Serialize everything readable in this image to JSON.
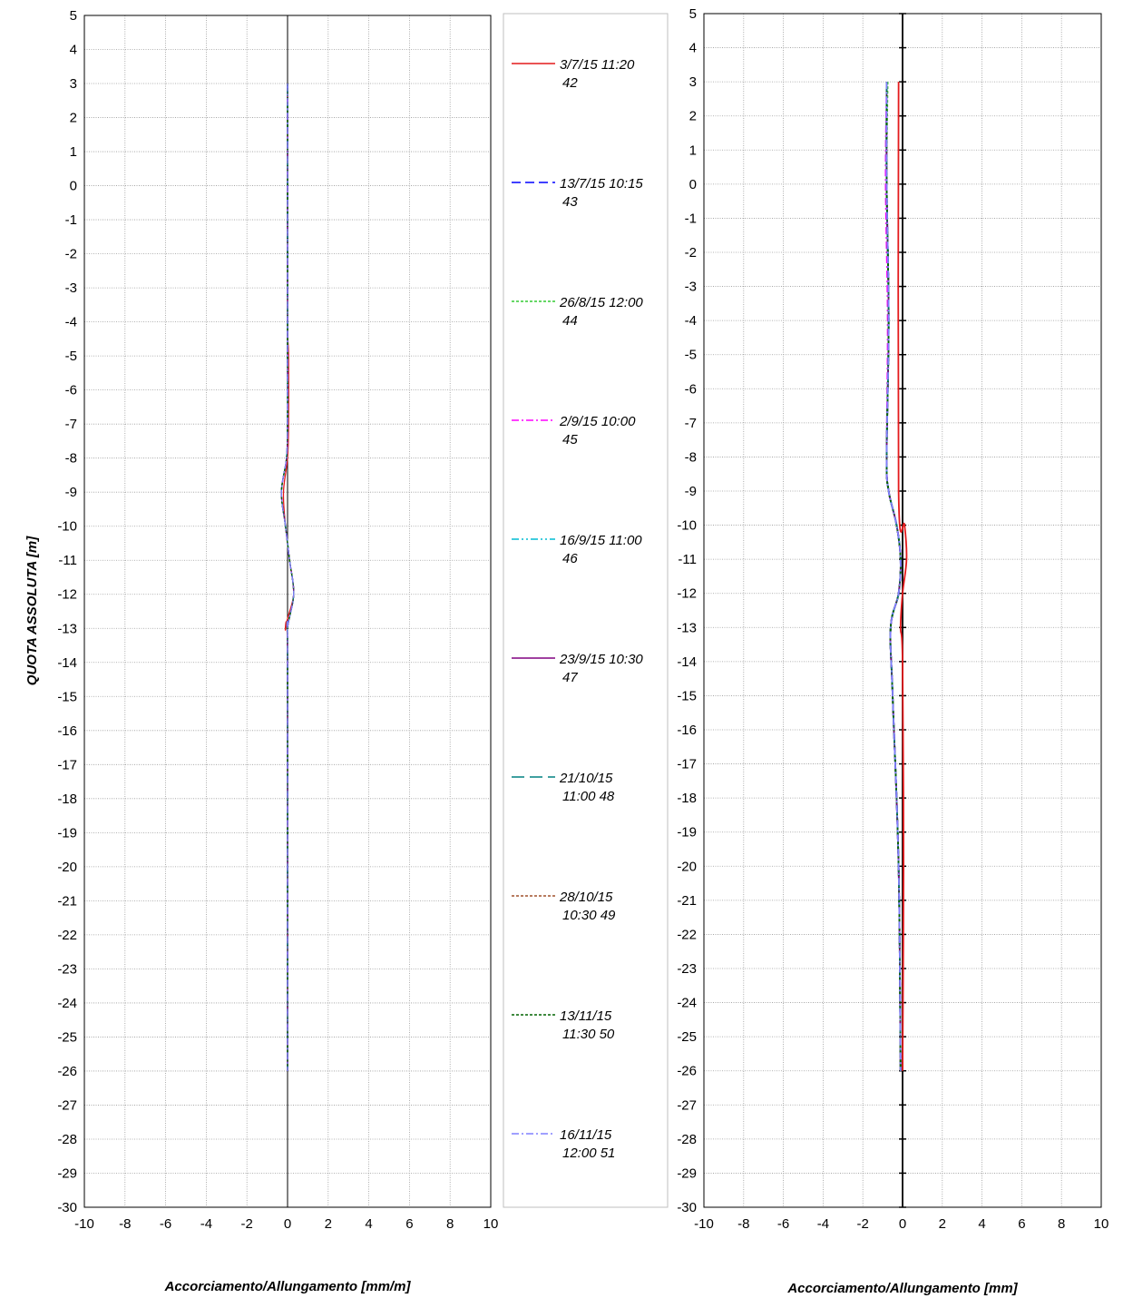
{
  "chart_data": [
    {
      "type": "line",
      "orientation": "vertical-profile",
      "xlabel": "Accorciamento/Allungamento [mm/m]",
      "ylabel": "QUOTA ASSOLUTA [m]",
      "xlim": [
        -10,
        10
      ],
      "ylim": [
        -30,
        5
      ],
      "x_ticks": [
        -10,
        -8,
        -6,
        -4,
        -2,
        0,
        2,
        4,
        6,
        8,
        10
      ],
      "y_ticks": [
        5,
        4,
        3,
        2,
        1,
        0,
        -1,
        -2,
        -3,
        -4,
        -5,
        -6,
        -7,
        -8,
        -9,
        -10,
        -11,
        -12,
        -13,
        -14,
        -15,
        -16,
        -17,
        -18,
        -19,
        -20,
        -21,
        -22,
        -23,
        -24,
        -25,
        -26,
        -27,
        -28,
        -29,
        -30
      ],
      "grid": true,
      "legend_position": "right",
      "series": [
        {
          "name": "3/7/15 11:20 42",
          "color": "#e41a1c",
          "dash": "solid",
          "depth": [
            3,
            0,
            -4,
            -5,
            -7,
            -8,
            -9,
            -10,
            -11,
            -12,
            -13,
            -14,
            -26
          ],
          "values": [
            0,
            0,
            0,
            0.05,
            0.05,
            0,
            -0.2,
            -0.1,
            0.1,
            0.3,
            -0.1,
            0,
            0
          ]
        },
        {
          "name": "13/7/15 10:15 43",
          "color": "#0000ff",
          "dash": "dashed",
          "depth": [
            3,
            0,
            -4,
            -5,
            -7,
            -8,
            -9,
            -10,
            -11,
            -12,
            -13,
            -14,
            -26
          ],
          "values": [
            0,
            0,
            0,
            0,
            0,
            -0.05,
            -0.3,
            -0.1,
            0.1,
            0.3,
            0,
            0,
            0
          ]
        },
        {
          "name": "26/8/15 12:00 44",
          "color": "#33cc33",
          "dash": "dotted",
          "depth": [
            3,
            0,
            -4,
            -5,
            -7,
            -8,
            -9,
            -10,
            -11,
            -12,
            -13,
            -14,
            -26
          ],
          "values": [
            0,
            0,
            0,
            0,
            0,
            -0.05,
            -0.3,
            -0.1,
            0.1,
            0.3,
            0,
            0,
            0
          ]
        },
        {
          "name": "2/9/15 10:00 45",
          "color": "#ff00ff",
          "dash": "dashdot",
          "depth": [
            3,
            0,
            -4,
            -5,
            -7,
            -8,
            -9,
            -10,
            -11,
            -12,
            -13,
            -14,
            -26
          ],
          "values": [
            0,
            0,
            0,
            0,
            0,
            -0.05,
            -0.3,
            -0.1,
            0.1,
            0.3,
            0,
            0,
            0
          ]
        },
        {
          "name": "16/9/15 11:00 46",
          "color": "#00bcd4",
          "dash": "dashdotdot",
          "depth": [
            3,
            0,
            -4,
            -5,
            -7,
            -8,
            -9,
            -10,
            -11,
            -12,
            -13,
            -14,
            -26
          ],
          "values": [
            0,
            0,
            0,
            0,
            0,
            -0.05,
            -0.3,
            -0.1,
            0.1,
            0.3,
            0,
            0,
            0
          ]
        },
        {
          "name": "23/9/15 10:30 47",
          "color": "#800080",
          "dash": "solid",
          "depth": [
            3,
            0,
            -4,
            -5,
            -7,
            -8,
            -9,
            -10,
            -11,
            -12,
            -13,
            -14,
            -26
          ],
          "values": [
            0,
            0,
            0,
            0,
            0,
            -0.05,
            -0.3,
            -0.1,
            0.1,
            0.3,
            0,
            0,
            0
          ]
        },
        {
          "name": "21/10/15 11:00 48",
          "color": "#008080",
          "dash": "longdash",
          "depth": [
            3,
            0,
            -4,
            -5,
            -7,
            -8,
            -9,
            -10,
            -11,
            -12,
            -13,
            -14,
            -26
          ],
          "values": [
            0,
            0,
            0,
            0,
            0,
            -0.05,
            -0.3,
            -0.1,
            0.1,
            0.3,
            0,
            0,
            0
          ]
        },
        {
          "name": "28/10/15 10:30 49",
          "color": "#a0522d",
          "dash": "dotted",
          "depth": [
            3,
            0,
            -4,
            -5,
            -7,
            -8,
            -9,
            -10,
            -11,
            -12,
            -13,
            -14,
            -26
          ],
          "values": [
            0,
            0,
            0,
            0,
            0,
            -0.05,
            -0.3,
            -0.1,
            0.1,
            0.3,
            0,
            0,
            0
          ]
        },
        {
          "name": "13/11/15 11:30 50",
          "color": "#006400",
          "dash": "dotted",
          "depth": [
            3,
            0,
            -4,
            -5,
            -7,
            -8,
            -9,
            -10,
            -11,
            -12,
            -13,
            -14,
            -26
          ],
          "values": [
            0,
            0,
            0,
            0,
            0,
            -0.05,
            -0.3,
            -0.1,
            0.1,
            0.3,
            0,
            0,
            0
          ]
        },
        {
          "name": "16/11/15 12:00 51",
          "color": "#8080ff",
          "dash": "dashdot",
          "depth": [
            3,
            0,
            -4,
            -5,
            -7,
            -8,
            -9,
            -10,
            -11,
            -12,
            -13,
            -14,
            -26
          ],
          "values": [
            0,
            0,
            0,
            0,
            0,
            -0.05,
            -0.3,
            -0.1,
            0.1,
            0.3,
            0,
            0,
            0
          ]
        }
      ]
    },
    {
      "type": "line",
      "orientation": "vertical-profile",
      "xlabel": "Accorciamento/Allungamento [mm]",
      "ylabel": "",
      "xlim": [
        -10,
        10
      ],
      "ylim": [
        -30,
        5
      ],
      "x_ticks": [
        -10,
        -8,
        -6,
        -4,
        -2,
        0,
        2,
        4,
        6,
        8,
        10
      ],
      "y_ticks": [
        5,
        4,
        3,
        2,
        1,
        0,
        -1,
        -2,
        -3,
        -4,
        -5,
        -6,
        -7,
        -8,
        -9,
        -10,
        -11,
        -12,
        -13,
        -14,
        -15,
        -16,
        -17,
        -18,
        -19,
        -20,
        -21,
        -22,
        -23,
        -24,
        -25,
        -26,
        -27,
        -28,
        -29,
        -30
      ],
      "grid": true,
      "series": [
        {
          "name": "3/7/15 11:20 42",
          "color": "#e41a1c",
          "dash": "solid",
          "depth": [
            3,
            -9,
            -10,
            -11,
            -12,
            -13,
            -14,
            -20,
            -26
          ],
          "values": [
            -0.2,
            -0.2,
            0.1,
            0.2,
            0,
            -0.1,
            0,
            0.05,
            0
          ]
        },
        {
          "name": "13/7/15 10:15 43",
          "color": "#0000ff",
          "dash": "dashed",
          "depth": [
            3,
            0,
            -4,
            -8,
            -9,
            -10,
            -11,
            -12,
            -13,
            -15,
            -20,
            -26
          ],
          "values": [
            -0.8,
            -0.8,
            -0.7,
            -0.8,
            -0.7,
            -0.3,
            -0.1,
            -0.2,
            -0.6,
            -0.5,
            -0.2,
            -0.1
          ]
        },
        {
          "name": "26/8/15 12:00 44",
          "color": "#33cc33",
          "dash": "dotted",
          "depth": [
            3,
            0,
            -4,
            -8,
            -9,
            -10,
            -11,
            -12,
            -13,
            -15,
            -20,
            -26
          ],
          "values": [
            -0.75,
            -0.8,
            -0.7,
            -0.8,
            -0.7,
            -0.3,
            -0.1,
            -0.2,
            -0.6,
            -0.5,
            -0.2,
            -0.1
          ]
        },
        {
          "name": "2/9/15 10:00 45",
          "color": "#ff00ff",
          "dash": "dashdot",
          "depth": [
            3,
            0,
            -4,
            -8,
            -9,
            -10,
            -11,
            -12,
            -13,
            -15,
            -20,
            -26
          ],
          "values": [
            -0.8,
            -0.85,
            -0.75,
            -0.8,
            -0.7,
            -0.3,
            -0.1,
            -0.2,
            -0.6,
            -0.5,
            -0.2,
            -0.1
          ]
        },
        {
          "name": "16/9/15 11:00 46",
          "color": "#00bcd4",
          "dash": "dashdotdot",
          "depth": [
            3,
            0,
            -4,
            -8,
            -9,
            -10,
            -11,
            -12,
            -13,
            -15,
            -20,
            -26
          ],
          "values": [
            -0.8,
            -0.8,
            -0.7,
            -0.8,
            -0.7,
            -0.3,
            -0.1,
            -0.2,
            -0.6,
            -0.5,
            -0.2,
            -0.1
          ]
        },
        {
          "name": "23/9/15 10:30 47",
          "color": "#800080",
          "dash": "solid",
          "depth": [
            3,
            0,
            -4,
            -8,
            -9,
            -10,
            -11,
            -12,
            -13,
            -15,
            -20,
            -26
          ],
          "values": [
            -0.8,
            -0.8,
            -0.7,
            -0.8,
            -0.7,
            -0.3,
            -0.1,
            -0.2,
            -0.6,
            -0.5,
            -0.2,
            -0.1
          ]
        },
        {
          "name": "21/10/15 11:00 48",
          "color": "#008080",
          "dash": "longdash",
          "depth": [
            3,
            0,
            -4,
            -8,
            -9,
            -10,
            -11,
            -12,
            -13,
            -15,
            -20,
            -26
          ],
          "values": [
            -0.8,
            -0.8,
            -0.7,
            -0.8,
            -0.7,
            -0.3,
            -0.1,
            -0.2,
            -0.6,
            -0.5,
            -0.2,
            -0.1
          ]
        },
        {
          "name": "28/10/15 10:30 49",
          "color": "#a0522d",
          "dash": "dotted",
          "depth": [
            3,
            0,
            -4,
            -8,
            -9,
            -10,
            -11,
            -12,
            -13,
            -15,
            -20,
            -26
          ],
          "values": [
            -0.8,
            -0.8,
            -0.7,
            -0.8,
            -0.7,
            -0.3,
            -0.1,
            -0.2,
            -0.6,
            -0.5,
            -0.2,
            -0.1
          ]
        },
        {
          "name": "13/11/15 11:30 50",
          "color": "#006400",
          "dash": "dotted",
          "depth": [
            3,
            0,
            -4,
            -8,
            -9,
            -10,
            -11,
            -12,
            -13,
            -15,
            -20,
            -26
          ],
          "values": [
            -0.8,
            -0.8,
            -0.7,
            -0.8,
            -0.7,
            -0.3,
            -0.1,
            -0.2,
            -0.6,
            -0.5,
            -0.2,
            -0.1
          ]
        },
        {
          "name": "16/11/15 12:00 51",
          "color": "#8080ff",
          "dash": "dashdot",
          "depth": [
            3,
            0,
            -4,
            -8,
            -9,
            -10,
            -11,
            -12,
            -13,
            -15,
            -20,
            -26
          ],
          "values": [
            -0.8,
            -0.8,
            -0.7,
            -0.8,
            -0.7,
            -0.3,
            -0.1,
            -0.2,
            -0.6,
            -0.5,
            -0.2,
            -0.1
          ]
        }
      ]
    }
  ],
  "legend": {
    "entries": [
      {
        "line1": "3/7/15 11:20",
        "line2": "42",
        "color": "#e41a1c",
        "dash": "solid"
      },
      {
        "line1": "13/7/15 10:15",
        "line2": "43",
        "color": "#0000ff",
        "dash": "dashed"
      },
      {
        "line1": "26/8/15 12:00",
        "line2": "44",
        "color": "#33cc33",
        "dash": "dotted"
      },
      {
        "line1": "2/9/15 10:00",
        "line2": "45",
        "color": "#ff00ff",
        "dash": "dashdot"
      },
      {
        "line1": "16/9/15 11:00",
        "line2": "46",
        "color": "#00bcd4",
        "dash": "dashdotdot"
      },
      {
        "line1": "23/9/15 10:30",
        "line2": "47",
        "color": "#800080",
        "dash": "solid"
      },
      {
        "line1": "21/10/15",
        "line2": "11:00 48",
        "color": "#008080",
        "dash": "longdash"
      },
      {
        "line1": "28/10/15",
        "line2": "10:30 49",
        "color": "#a0522d",
        "dash": "dotted"
      },
      {
        "line1": "13/11/15",
        "line2": "11:30 50",
        "color": "#006400",
        "dash": "dotted"
      },
      {
        "line1": "16/11/15",
        "line2": "12:00 51",
        "color": "#8080ff",
        "dash": "dashdot"
      }
    ]
  }
}
